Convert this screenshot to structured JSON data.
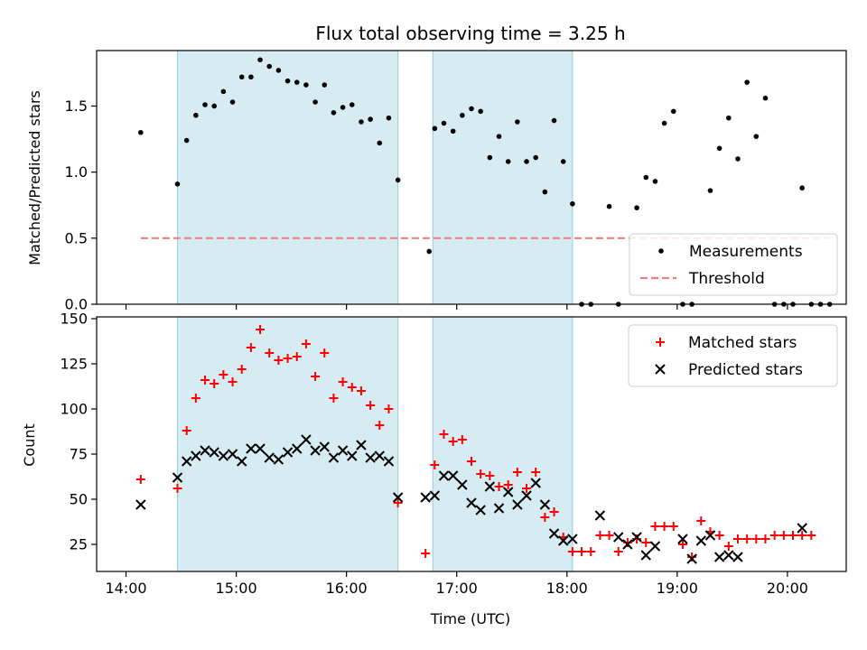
{
  "chart_data": [
    {
      "type": "scatter",
      "title": "Flux total observing time = 3.25 h",
      "ylabel": "Matched/Predicted stars",
      "ylim": [
        0,
        1.92
      ],
      "yticks": [
        0.0,
        0.5,
        1.0,
        1.5
      ],
      "ytick_labels": [
        "0.0",
        "0.5",
        "1.0",
        "1.5"
      ],
      "x_range": [
        "13:44",
        "20:32"
      ],
      "shaded_intervals": [
        [
          "14:28",
          "16:28"
        ],
        [
          "16:47",
          "18:03"
        ]
      ],
      "legend_position": "lower-right",
      "series": [
        {
          "name": "Measurements",
          "marker": "dot",
          "color": "#000000",
          "points": [
            [
              "14:08",
              1.3
            ],
            [
              "14:28",
              0.91
            ],
            [
              "14:33",
              1.24
            ],
            [
              "14:38",
              1.43
            ],
            [
              "14:43",
              1.51
            ],
            [
              "14:48",
              1.5
            ],
            [
              "14:53",
              1.61
            ],
            [
              "14:58",
              1.53
            ],
            [
              "15:03",
              1.72
            ],
            [
              "15:08",
              1.72
            ],
            [
              "15:13",
              1.85
            ],
            [
              "15:18",
              1.8
            ],
            [
              "15:23",
              1.77
            ],
            [
              "15:28",
              1.69
            ],
            [
              "15:33",
              1.68
            ],
            [
              "15:38",
              1.66
            ],
            [
              "15:43",
              1.53
            ],
            [
              "15:48",
              1.66
            ],
            [
              "15:53",
              1.45
            ],
            [
              "15:58",
              1.49
            ],
            [
              "16:03",
              1.51
            ],
            [
              "16:08",
              1.38
            ],
            [
              "16:13",
              1.4
            ],
            [
              "16:18",
              1.22
            ],
            [
              "16:23",
              1.41
            ],
            [
              "16:28",
              0.94
            ],
            [
              "16:45",
              0.4
            ],
            [
              "16:48",
              1.33
            ],
            [
              "16:53",
              1.37
            ],
            [
              "16:58",
              1.31
            ],
            [
              "17:03",
              1.43
            ],
            [
              "17:08",
              1.48
            ],
            [
              "17:13",
              1.46
            ],
            [
              "17:18",
              1.11
            ],
            [
              "17:23",
              1.27
            ],
            [
              "17:28",
              1.08
            ],
            [
              "17:33",
              1.38
            ],
            [
              "17:38",
              1.08
            ],
            [
              "17:43",
              1.11
            ],
            [
              "17:48",
              0.85
            ],
            [
              "17:53",
              1.39
            ],
            [
              "17:58",
              1.08
            ],
            [
              "18:03",
              0.76
            ],
            [
              "18:08",
              0.0
            ],
            [
              "18:13",
              0.0
            ],
            [
              "18:23",
              0.74
            ],
            [
              "18:28",
              0.0
            ],
            [
              "18:38",
              0.73
            ],
            [
              "18:43",
              0.96
            ],
            [
              "18:48",
              0.93
            ],
            [
              "18:53",
              1.37
            ],
            [
              "18:58",
              1.46
            ],
            [
              "19:03",
              0.0
            ],
            [
              "19:08",
              0.0
            ],
            [
              "19:18",
              0.86
            ],
            [
              "19:23",
              1.18
            ],
            [
              "19:28",
              1.41
            ],
            [
              "19:33",
              1.1
            ],
            [
              "19:38",
              1.68
            ],
            [
              "19:43",
              1.27
            ],
            [
              "19:48",
              1.56
            ],
            [
              "19:53",
              0.0
            ],
            [
              "19:58",
              0.0
            ],
            [
              "20:03",
              0.0
            ],
            [
              "20:08",
              0.88
            ],
            [
              "20:13",
              0.0
            ],
            [
              "20:18",
              0.0
            ],
            [
              "20:23",
              0.0
            ]
          ]
        },
        {
          "name": "Threshold",
          "marker": "dashed-line",
          "color": "#f08080",
          "points": [
            [
              "14:08",
              0.5
            ],
            [
              "20:23",
              0.5
            ]
          ]
        }
      ]
    },
    {
      "type": "scatter",
      "xlabel": "Time (UTC)",
      "ylabel": "Count",
      "ylim": [
        10,
        151
      ],
      "yticks": [
        25,
        50,
        75,
        100,
        125,
        150
      ],
      "ytick_labels": [
        "25",
        "50",
        "75",
        "100",
        "125",
        "150"
      ],
      "x_range": [
        "13:44",
        "20:32"
      ],
      "xticks": [
        "14:00",
        "15:00",
        "16:00",
        "17:00",
        "18:00",
        "19:00",
        "20:00"
      ],
      "xtick_labels": [
        "14:00",
        "15:00",
        "16:00",
        "17:00",
        "18:00",
        "19:00",
        "20:00"
      ],
      "shaded_intervals": [
        [
          "14:28",
          "16:28"
        ],
        [
          "16:47",
          "18:03"
        ]
      ],
      "legend_position": "upper-right",
      "series": [
        {
          "name": "Matched stars",
          "marker": "plus",
          "color": "#ff0000",
          "points": [
            [
              "14:08",
              61
            ],
            [
              "14:28",
              56
            ],
            [
              "14:33",
              88
            ],
            [
              "14:38",
              106
            ],
            [
              "14:43",
              116
            ],
            [
              "14:48",
              114
            ],
            [
              "14:53",
              119
            ],
            [
              "14:58",
              115
            ],
            [
              "15:03",
              122
            ],
            [
              "15:08",
              134
            ],
            [
              "15:13",
              144
            ],
            [
              "15:18",
              131
            ],
            [
              "15:23",
              127
            ],
            [
              "15:28",
              128
            ],
            [
              "15:33",
              129
            ],
            [
              "15:38",
              136
            ],
            [
              "15:43",
              118
            ],
            [
              "15:48",
              131
            ],
            [
              "15:53",
              106
            ],
            [
              "15:58",
              115
            ],
            [
              "16:03",
              112
            ],
            [
              "16:08",
              110
            ],
            [
              "16:13",
              102
            ],
            [
              "16:18",
              91
            ],
            [
              "16:23",
              100
            ],
            [
              "16:28",
              48
            ],
            [
              "16:43",
              20
            ],
            [
              "16:48",
              69
            ],
            [
              "16:53",
              86
            ],
            [
              "16:58",
              82
            ],
            [
              "17:03",
              83
            ],
            [
              "17:08",
              71
            ],
            [
              "17:13",
              64
            ],
            [
              "17:18",
              63
            ],
            [
              "17:23",
              57
            ],
            [
              "17:28",
              58
            ],
            [
              "17:33",
              65
            ],
            [
              "17:38",
              56
            ],
            [
              "17:43",
              65
            ],
            [
              "17:48",
              40
            ],
            [
              "17:53",
              43
            ],
            [
              "17:58",
              29
            ],
            [
              "18:03",
              21
            ],
            [
              "18:08",
              21
            ],
            [
              "18:13",
              21
            ],
            [
              "18:18",
              30
            ],
            [
              "18:23",
              30
            ],
            [
              "18:28",
              21
            ],
            [
              "18:33",
              26
            ],
            [
              "18:38",
              28
            ],
            [
              "18:43",
              26
            ],
            [
              "18:48",
              35
            ],
            [
              "18:53",
              35
            ],
            [
              "18:58",
              35
            ],
            [
              "19:03",
              25
            ],
            [
              "19:08",
              18
            ],
            [
              "19:13",
              38
            ],
            [
              "19:18",
              32
            ],
            [
              "19:23",
              30
            ],
            [
              "19:28",
              24
            ],
            [
              "19:33",
              28
            ],
            [
              "19:38",
              28
            ],
            [
              "19:43",
              28
            ],
            [
              "19:48",
              28
            ],
            [
              "19:53",
              30
            ],
            [
              "19:58",
              30
            ],
            [
              "20:03",
              30
            ],
            [
              "20:08",
              30
            ],
            [
              "20:13",
              30
            ]
          ]
        },
        {
          "name": "Predicted stars",
          "marker": "x",
          "color": "#000000",
          "points": [
            [
              "14:08",
              47
            ],
            [
              "14:28",
              62
            ],
            [
              "14:33",
              71
            ],
            [
              "14:38",
              74
            ],
            [
              "14:43",
              77
            ],
            [
              "14:48",
              76
            ],
            [
              "14:53",
              74
            ],
            [
              "14:58",
              75
            ],
            [
              "15:03",
              71
            ],
            [
              "15:08",
              78
            ],
            [
              "15:13",
              78
            ],
            [
              "15:18",
              73
            ],
            [
              "15:23",
              72
            ],
            [
              "15:28",
              76
            ],
            [
              "15:33",
              78
            ],
            [
              "15:38",
              83
            ],
            [
              "15:43",
              77
            ],
            [
              "15:48",
              79
            ],
            [
              "15:53",
              73
            ],
            [
              "15:58",
              77
            ],
            [
              "16:03",
              74
            ],
            [
              "16:08",
              80
            ],
            [
              "16:13",
              73
            ],
            [
              "16:18",
              74
            ],
            [
              "16:23",
              71
            ],
            [
              "16:28",
              51
            ],
            [
              "16:43",
              51
            ],
            [
              "16:48",
              52
            ],
            [
              "16:53",
              63
            ],
            [
              "16:58",
              63
            ],
            [
              "17:03",
              58
            ],
            [
              "17:08",
              48
            ],
            [
              "17:13",
              44
            ],
            [
              "17:18",
              57
            ],
            [
              "17:23",
              45
            ],
            [
              "17:28",
              54
            ],
            [
              "17:33",
              47
            ],
            [
              "17:38",
              52
            ],
            [
              "17:43",
              59
            ],
            [
              "17:48",
              47
            ],
            [
              "17:53",
              31
            ],
            [
              "17:58",
              27
            ],
            [
              "18:03",
              28
            ],
            [
              "18:18",
              41
            ],
            [
              "18:28",
              29
            ],
            [
              "18:33",
              25
            ],
            [
              "18:38",
              29
            ],
            [
              "18:43",
              19
            ],
            [
              "18:48",
              24
            ],
            [
              "19:03",
              28
            ],
            [
              "19:08",
              17
            ],
            [
              "19:13",
              27
            ],
            [
              "19:18",
              30
            ],
            [
              "19:23",
              18
            ],
            [
              "19:28",
              19
            ],
            [
              "19:33",
              18
            ],
            [
              "20:08",
              34
            ]
          ]
        }
      ]
    }
  ]
}
